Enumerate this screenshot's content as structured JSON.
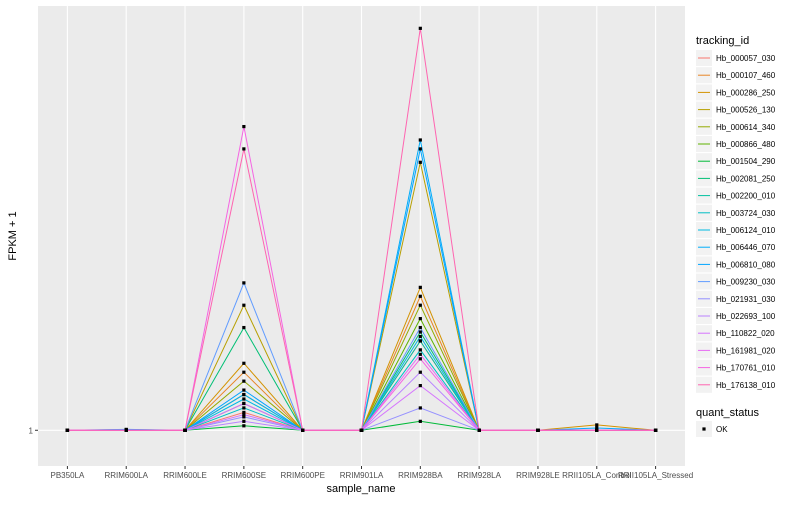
{
  "chart_data": {
    "type": "line",
    "xlabel": "sample_name",
    "ylabel": "FPKM + 1",
    "y_tick_labels": [
      "1"
    ],
    "y_tick_values": [
      1
    ],
    "ylim": [
      0.2,
      10.5
    ],
    "grid": true,
    "legend_position": "right",
    "categories": [
      "PB350LA",
      "RRIM600LA",
      "RRIM600LE",
      "RRIM600SE",
      "RRIM600PE",
      "RRIM901LA",
      "RRIM928BA",
      "RRIM928LA",
      "RRIM928LE",
      "RRII105LA_Control",
      "RRII105LA_Stressed"
    ],
    "legend_title": "tracking_id",
    "series": [
      {
        "name": "Hb_000057_030",
        "color": "#F8766D",
        "values": [
          1,
          1,
          1,
          1.4,
          1,
          1,
          3.0,
          1,
          1,
          1,
          1
        ]
      },
      {
        "name": "Hb_000107_460",
        "color": "#E88526",
        "values": [
          1,
          1,
          1,
          2.3,
          1,
          1,
          4.0,
          1,
          1,
          1,
          1
        ]
      },
      {
        "name": "Hb_000286_250",
        "color": "#D39200",
        "values": [
          1,
          1.01,
          1,
          2.5,
          1,
          1,
          4.2,
          1,
          1,
          1.12,
          1
        ]
      },
      {
        "name": "Hb_000526_130",
        "color": "#B79F00",
        "values": [
          1,
          1,
          1,
          3.8,
          1,
          1,
          7.0,
          1,
          1,
          1,
          1
        ]
      },
      {
        "name": "Hb_000614_340",
        "color": "#93AA00",
        "values": [
          1,
          1,
          1,
          2.1,
          1,
          1,
          3.8,
          1,
          1,
          1,
          1
        ]
      },
      {
        "name": "Hb_000866_480",
        "color": "#5EB300",
        "values": [
          1,
          1,
          1,
          1.8,
          1,
          1,
          3.5,
          1,
          1,
          1,
          1
        ]
      },
      {
        "name": "Hb_001504_290",
        "color": "#00BA38",
        "values": [
          1,
          1,
          1,
          1.1,
          1,
          1,
          1.2,
          1,
          1,
          1,
          1
        ]
      },
      {
        "name": "Hb_002081_250",
        "color": "#00BF74",
        "values": [
          1,
          1,
          1,
          3.3,
          1,
          1,
          3.2,
          1,
          1,
          1,
          1
        ]
      },
      {
        "name": "Hb_002200_010",
        "color": "#00C19F",
        "values": [
          1,
          1,
          1,
          1.6,
          1,
          1,
          3.0,
          1,
          1,
          1,
          1
        ]
      },
      {
        "name": "Hb_003724_030",
        "color": "#00BFC4",
        "values": [
          1,
          1,
          1,
          1.5,
          1,
          1,
          2.8,
          1,
          1,
          1,
          1
        ]
      },
      {
        "name": "Hb_006124_010",
        "color": "#00B9E3",
        "values": [
          1,
          1,
          1,
          1.7,
          1,
          1,
          3.1,
          1,
          1,
          1,
          1
        ]
      },
      {
        "name": "Hb_006446_070",
        "color": "#00ADFA",
        "values": [
          1,
          1.02,
          1,
          1.8,
          1,
          1,
          7.5,
          1,
          1,
          1.05,
          1
        ]
      },
      {
        "name": "Hb_006810_080",
        "color": "#00A5FF",
        "values": [
          1,
          1,
          1,
          1.9,
          1,
          1,
          7.3,
          1,
          1,
          1,
          1
        ]
      },
      {
        "name": "Hb_009230_030",
        "color": "#619CFF",
        "values": [
          1,
          1.01,
          1,
          4.3,
          1,
          1,
          3.3,
          1,
          1,
          1,
          1
        ]
      },
      {
        "name": "Hb_021931_030",
        "color": "#9590FF",
        "values": [
          1,
          1,
          1,
          1.3,
          1,
          1,
          1.5,
          1,
          1,
          1,
          1
        ]
      },
      {
        "name": "Hb_022693_100",
        "color": "#B983FF",
        "values": [
          1,
          1,
          1,
          1.2,
          1,
          1,
          2.3,
          1,
          1,
          1,
          1
        ]
      },
      {
        "name": "Hb_110822_020",
        "color": "#D575FE",
        "values": [
          1,
          1,
          1,
          1.35,
          1,
          1,
          2.0,
          1,
          1,
          1,
          1
        ]
      },
      {
        "name": "Hb_161981_020",
        "color": "#E76BF3",
        "values": [
          1,
          1,
          1,
          1.6,
          1,
          1,
          2.7,
          1,
          1,
          1,
          1
        ]
      },
      {
        "name": "Hb_170761_010",
        "color": "#F564E3",
        "values": [
          1,
          1,
          1,
          7.8,
          1,
          1,
          2.6,
          1,
          1,
          1,
          1
        ]
      },
      {
        "name": "Hb_176138_010",
        "color": "#FF64B0",
        "values": [
          1,
          1,
          1,
          7.3,
          1,
          1,
          10.0,
          1,
          1,
          1,
          1
        ]
      }
    ],
    "legend2_title": "quant_status",
    "legend2_entries": [
      "OK"
    ]
  }
}
